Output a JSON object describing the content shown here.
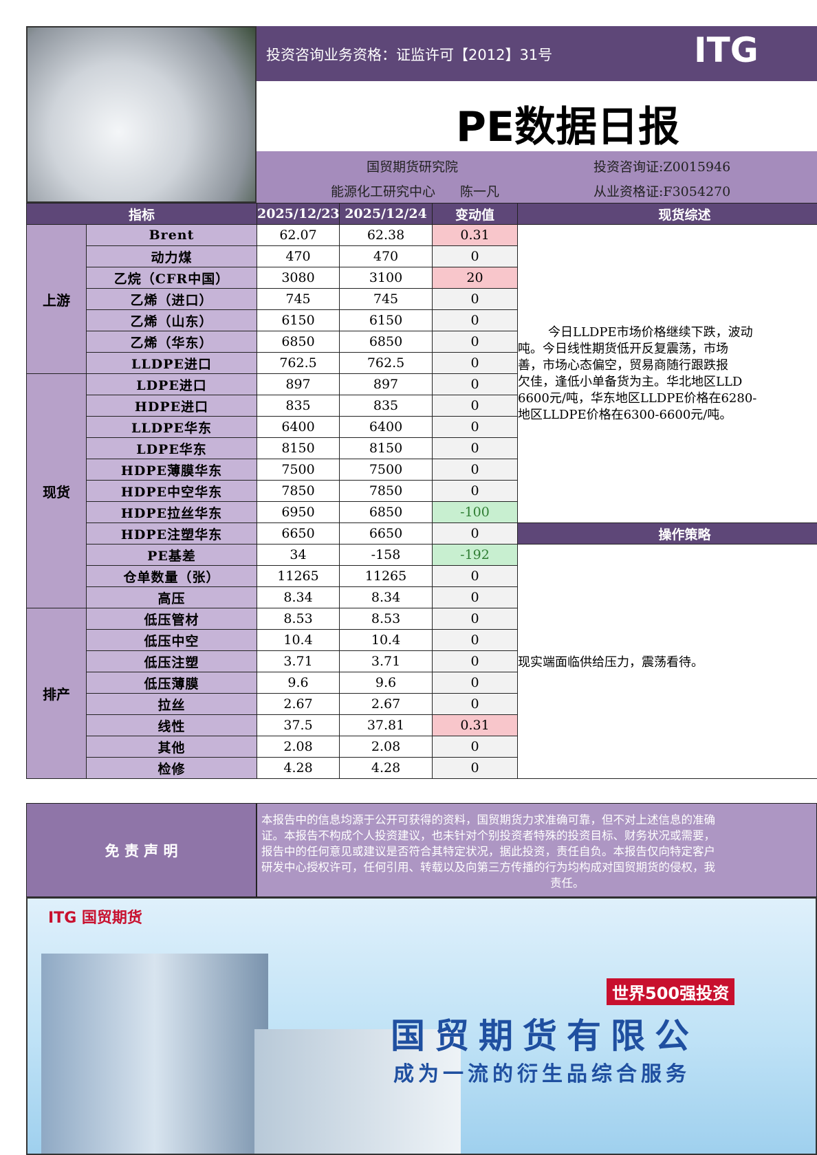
{
  "header": {
    "license": "投资咨询业务资格：证监许可【2012】31号",
    "logo": "ITG",
    "title": "PE数据日报",
    "institute": "国贸期货研究院",
    "center": "能源化工研究中心",
    "analyst": "陈一凡",
    "cert1": "投资咨询证:Z0015946",
    "cert2": "从业资格证:F3054270"
  },
  "table": {
    "columns": [
      "指标",
      "2025/12/23",
      "2025/12/24",
      "变动值",
      "现货综述"
    ],
    "groups": [
      {
        "name": "上游",
        "rows": [
          [
            "Brent",
            "62.07",
            "62.38",
            "0.31"
          ],
          [
            "动力煤",
            "470",
            "470",
            "0"
          ],
          [
            "乙烷（CFR中国）",
            "3080",
            "3100",
            "20"
          ],
          [
            "乙烯（进口）",
            "745",
            "745",
            "0"
          ],
          [
            "乙烯（山东）",
            "6150",
            "6150",
            "0"
          ],
          [
            "乙烯（华东）",
            "6850",
            "6850",
            "0"
          ],
          [
            "LLDPE进口",
            "762.5",
            "762.5",
            "0"
          ]
        ]
      },
      {
        "name": "现货",
        "rows": [
          [
            "LDPE进口",
            "897",
            "897",
            "0"
          ],
          [
            "HDPE进口",
            "835",
            "835",
            "0"
          ],
          [
            "LLDPE华东",
            "6400",
            "6400",
            "0"
          ],
          [
            "LDPE华东",
            "8150",
            "8150",
            "0"
          ],
          [
            "HDPE薄膜华东",
            "7500",
            "7500",
            "0"
          ],
          [
            "HDPE中空华东",
            "7850",
            "7850",
            "0"
          ],
          [
            "HDPE拉丝华东",
            "6950",
            "6850",
            "-100"
          ],
          [
            "HDPE注塑华东",
            "6650",
            "6650",
            "0"
          ],
          [
            "PE基差",
            "34",
            "-158",
            "-192"
          ],
          [
            "仓单数量（张）",
            "11265",
            "11265",
            "0"
          ],
          [
            "高压",
            "8.34",
            "8.34",
            "0"
          ]
        ]
      },
      {
        "name": "排产",
        "rows": [
          [
            "低压管材",
            "8.53",
            "8.53",
            "0"
          ],
          [
            "低压中空",
            "10.4",
            "10.4",
            "0"
          ],
          [
            "低压注塑",
            "3.71",
            "3.71",
            "0"
          ],
          [
            "低压薄膜",
            "9.6",
            "9.6",
            "0"
          ],
          [
            "拉丝",
            "2.67",
            "2.67",
            "0"
          ],
          [
            "线性",
            "37.5",
            "37.81",
            "0.31"
          ],
          [
            "其他",
            "2.08",
            "2.08",
            "0"
          ],
          [
            "检修",
            "4.28",
            "4.28",
            "0"
          ]
        ]
      }
    ],
    "summary_lines": [
      "今日LLDPE市场价格继续下跌，波动",
      "吨。今日线性期货低开反复震荡，市场",
      "善，市场心态偏空，贸易商随行跟跌报",
      "欠佳，逢低小单备货为主。华北地区LLD",
      "6600元/吨，华东地区LLDPE价格在6280-",
      "地区LLDPE价格在6300-6600元/吨。"
    ],
    "strategy_title": "操作策略",
    "strategy": "现实端面临供给压力，震荡看待。"
  },
  "disclaimer": {
    "title": "免 责 声 明",
    "lines": [
      "本报告中的信息均源于公开可获得的资料，国贸期货力求准确可靠，但不对上述信息的准确",
      "证。本报告不构成个人投资建议，也未针对个别投资者特殊的投资目标、财务状况或需要，",
      "报告中的任何意见或建议是否符合其特定状况，据此投资，责任自负。本报告仅向特定客户",
      "研发中心授权许可，任何引用、转载以及向第三方传播的行为均构成对国贸期货的侵权，我",
      "责任。"
    ]
  },
  "banner": {
    "brand": "ITG 国贸期货",
    "badge": "世界500强投资",
    "company": "国贸期货有限公",
    "slogan": "成为一流的衍生品综合服务"
  }
}
